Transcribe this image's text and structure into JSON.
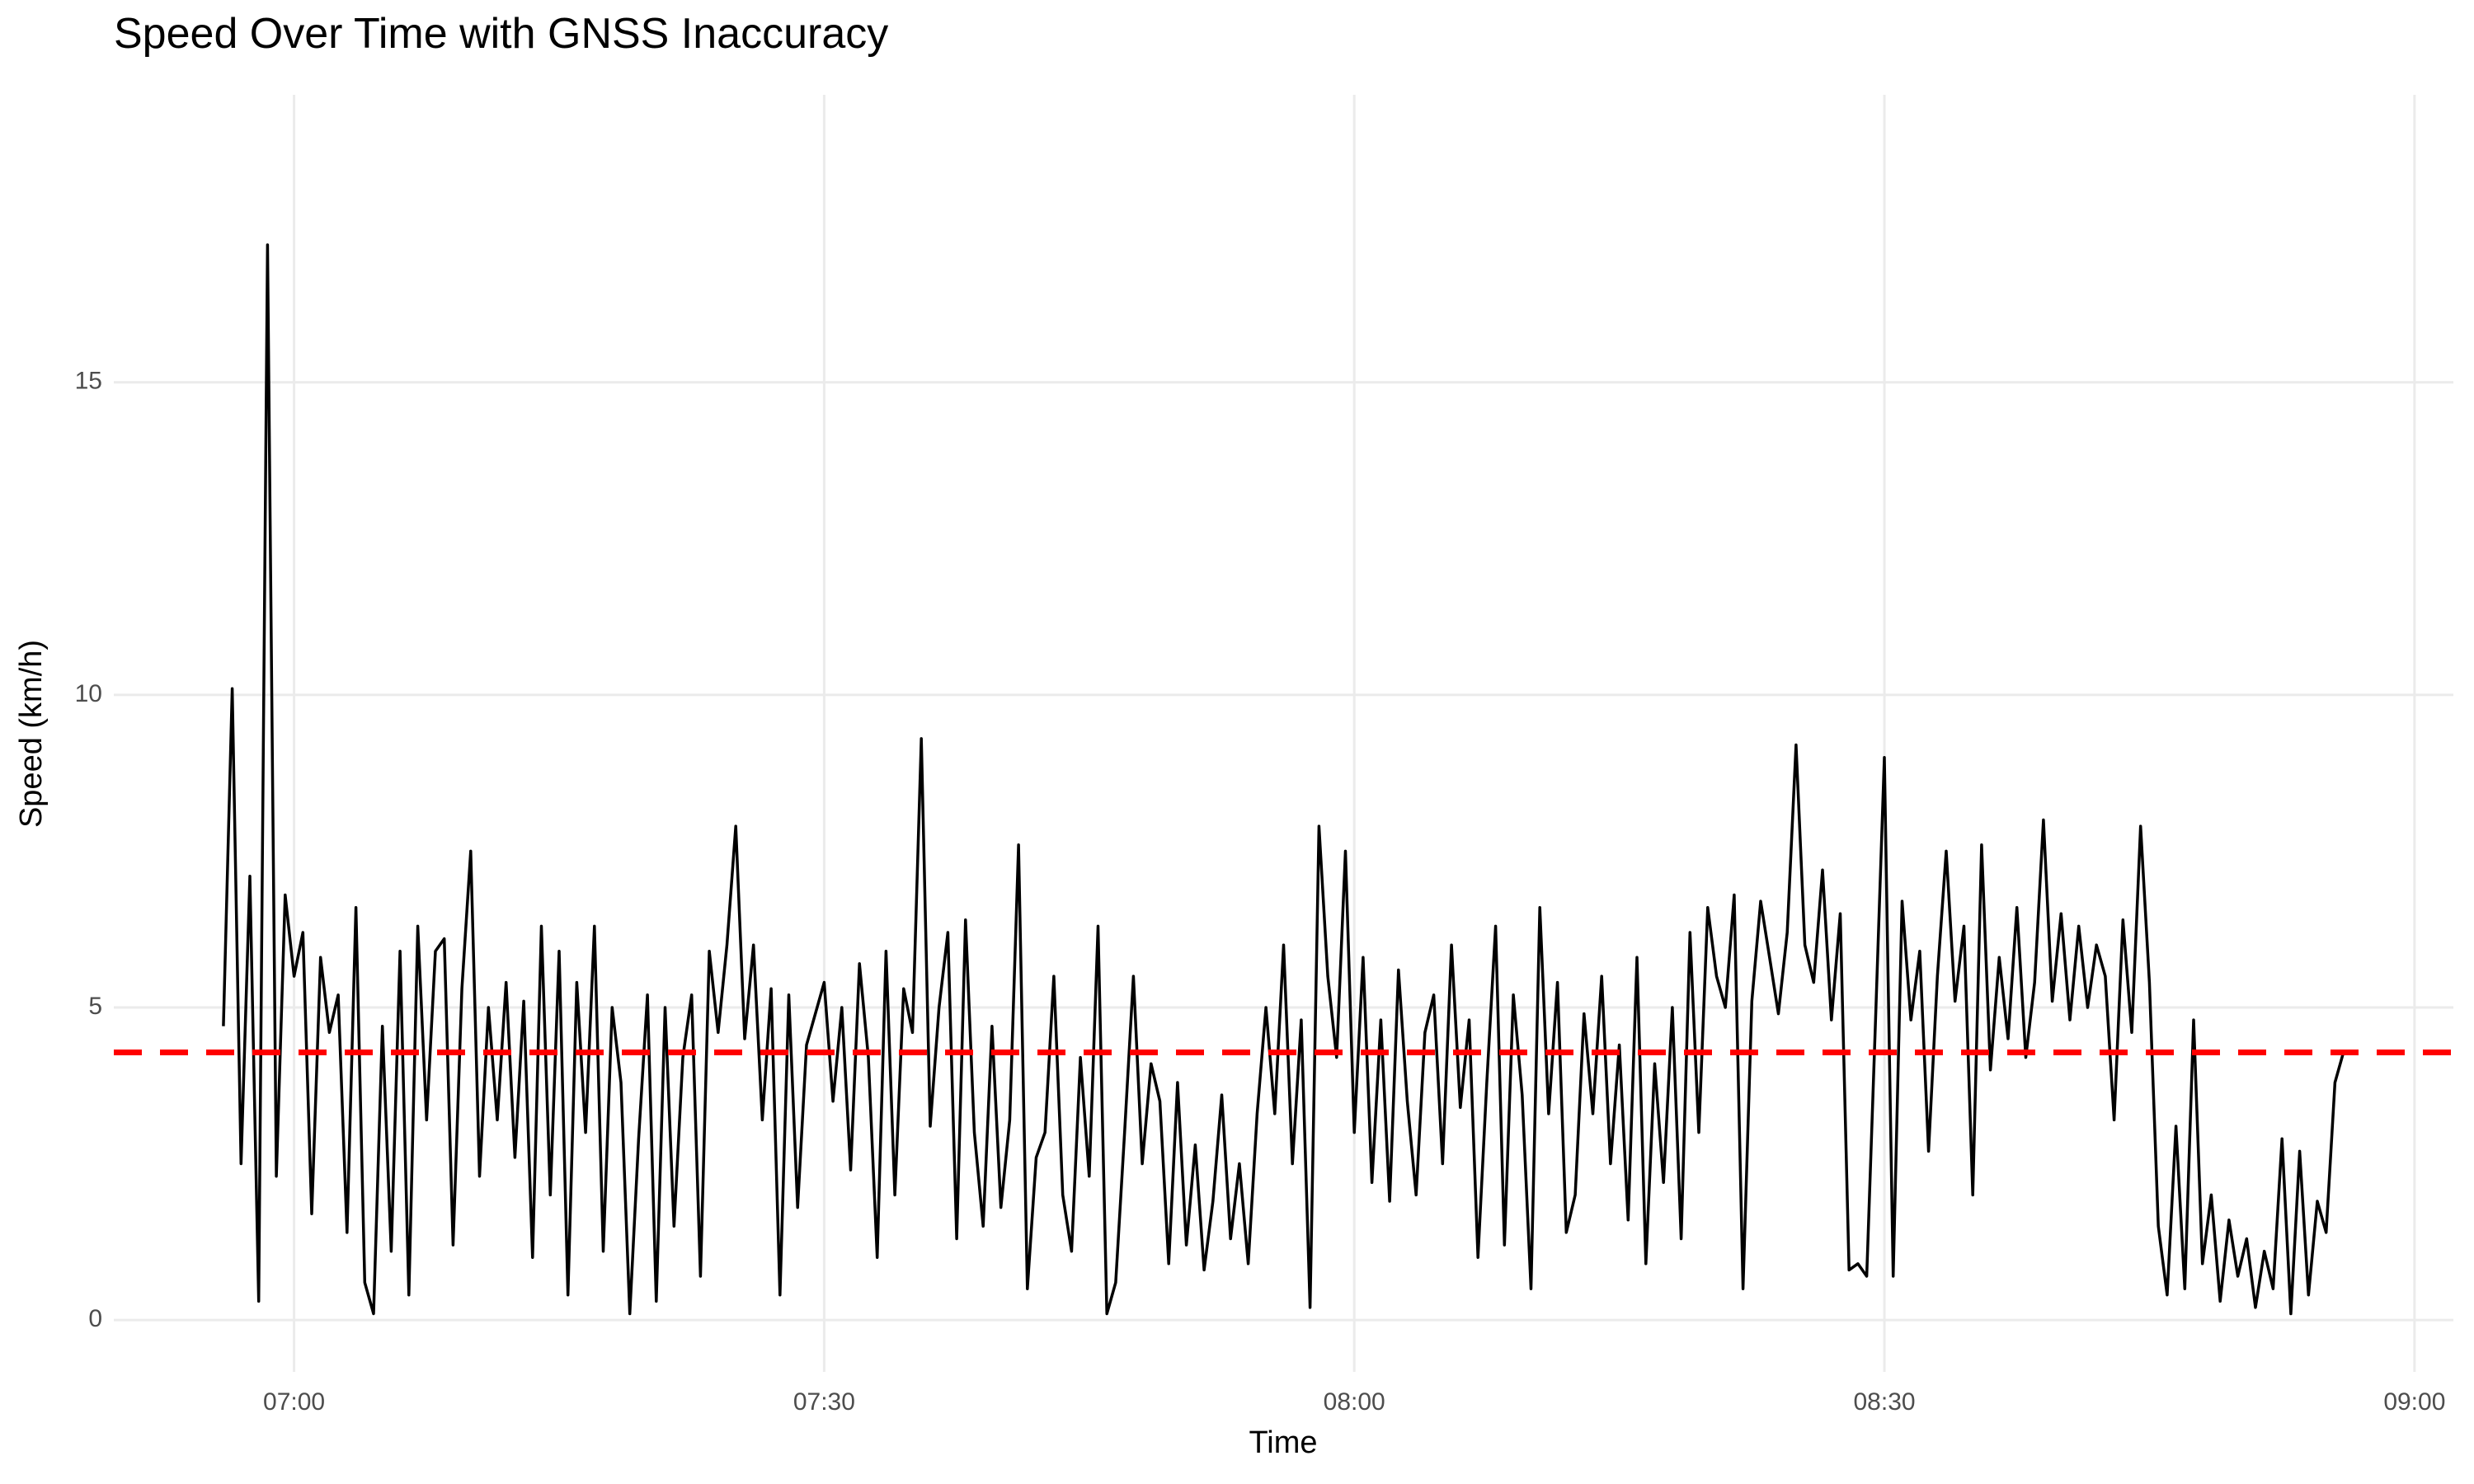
{
  "chart_data": {
    "type": "line",
    "title": "Speed Over Time with GNSS Inaccuracy",
    "x_label": "Time",
    "y_label": "Speed (km/h)",
    "xlim": [
      409.8,
      542.2
    ],
    "ylim": [
      -0.83,
      19.6
    ],
    "xticks": [
      {
        "value": 420,
        "label": "07:00"
      },
      {
        "value": 450,
        "label": "07:30"
      },
      {
        "value": 480,
        "label": "08:00"
      },
      {
        "value": 510,
        "label": "08:30"
      },
      {
        "value": 540,
        "label": "09:00"
      }
    ],
    "yticks": [
      0,
      5,
      10,
      15
    ],
    "grid": true,
    "x": [
      416,
      416.5,
      417,
      417.5,
      418,
      418.5,
      419,
      419.5,
      420,
      420.5,
      421,
      421.5,
      422,
      422.5,
      423,
      423.5,
      424,
      424.5,
      425,
      425.5,
      426,
      426.5,
      427,
      427.5,
      428,
      428.5,
      429,
      429.5,
      430,
      430.5,
      431,
      431.5,
      432,
      432.5,
      433,
      433.5,
      434,
      434.5,
      435,
      435.5,
      436,
      436.5,
      437,
      437.5,
      438,
      438.5,
      439,
      439.5,
      440,
      440.5,
      441,
      441.5,
      442,
      442.5,
      443,
      443.5,
      444,
      444.5,
      445,
      445.5,
      446,
      446.5,
      447,
      447.5,
      448,
      448.5,
      449,
      449.5,
      450,
      450.5,
      451,
      451.5,
      452,
      452.5,
      453,
      453.5,
      454,
      454.5,
      455,
      455.5,
      456,
      456.5,
      457,
      457.5,
      458,
      458.5,
      459,
      459.5,
      460,
      460.5,
      461,
      461.5,
      462,
      462.5,
      463,
      463.5,
      464,
      464.5,
      465,
      465.5,
      466,
      466.5,
      467,
      467.5,
      468,
      468.5,
      469,
      469.5,
      470,
      470.5,
      471,
      471.5,
      472,
      472.5,
      473,
      473.5,
      474,
      474.5,
      475,
      475.5,
      476,
      476.5,
      477,
      477.5,
      478,
      478.5,
      479,
      479.5,
      480,
      480.5,
      481,
      481.5,
      482,
      482.5,
      483,
      483.5,
      484,
      484.5,
      485,
      485.5,
      486,
      486.5,
      487,
      487.5,
      488,
      488.5,
      489,
      489.5,
      490,
      490.5,
      491,
      491.5,
      492,
      492.5,
      493,
      493.5,
      494,
      494.5,
      495,
      495.5,
      496,
      496.5,
      497,
      497.5,
      498,
      498.5,
      499,
      499.5,
      500,
      500.5,
      501,
      501.5,
      502,
      502.5,
      503,
      503.5,
      504,
      504.5,
      505,
      505.5,
      506,
      506.5,
      507,
      507.5,
      508,
      508.5,
      509,
      509.5,
      510,
      510.5,
      511,
      511.5,
      512,
      512.5,
      513,
      513.5,
      514,
      514.5,
      515,
      515.5,
      516,
      516.5,
      517,
      517.5,
      518,
      518.5,
      519,
      519.5,
      520,
      520.5,
      521,
      521.5,
      522,
      522.5,
      523,
      523.5,
      524,
      524.5,
      525,
      525.5,
      526,
      526.5,
      527,
      527.5,
      528,
      528.5,
      529,
      529.5,
      530,
      530.5,
      531,
      531.5,
      532,
      532.5,
      533,
      533.5,
      534,
      534.5,
      535,
      535.5,
      536
    ],
    "series": [
      {
        "color": "#000000",
        "values": [
          4.7,
          10.1,
          2.5,
          7.1,
          0.3,
          17.2,
          2.3,
          6.8,
          5.5,
          6.2,
          1.7,
          5.8,
          4.6,
          5.2,
          1.4,
          6.6,
          0.6,
          0.1,
          4.7,
          1.1,
          5.9,
          0.4,
          6.3,
          3.2,
          5.9,
          6.1,
          1.2,
          5.3,
          7.5,
          2.3,
          5.0,
          3.2,
          5.4,
          2.6,
          5.1,
          1.0,
          6.3,
          2.0,
          5.9,
          0.4,
          5.4,
          3.0,
          6.3,
          1.1,
          5.0,
          3.8,
          0.1,
          2.9,
          5.2,
          0.3,
          5.0,
          1.5,
          4.2,
          5.2,
          0.7,
          5.9,
          4.6,
          6.0,
          7.9,
          4.5,
          6.0,
          3.2,
          5.3,
          0.4,
          5.2,
          1.8,
          4.4,
          4.9,
          5.4,
          3.5,
          5.0,
          2.4,
          5.7,
          4.2,
          1.0,
          5.9,
          2.0,
          5.3,
          4.6,
          9.3,
          3.1,
          5.0,
          6.2,
          1.3,
          6.4,
          3.0,
          1.5,
          4.7,
          1.8,
          3.2,
          7.6,
          0.5,
          2.6,
          3.0,
          5.5,
          2.0,
          1.1,
          4.2,
          2.3,
          6.3,
          0.1,
          0.6,
          3.0,
          5.5,
          2.5,
          4.1,
          3.5,
          0.9,
          3.8,
          1.2,
          2.8,
          0.8,
          1.9,
          3.6,
          1.3,
          2.5,
          0.9,
          3.3,
          5.0,
          3.3,
          6.0,
          2.5,
          4.8,
          0.2,
          7.9,
          5.5,
          4.2,
          7.5,
          3.0,
          5.8,
          2.2,
          4.8,
          1.9,
          5.6,
          3.5,
          2.0,
          4.6,
          5.2,
          2.5,
          6.0,
          3.4,
          4.8,
          1.0,
          3.8,
          6.3,
          1.2,
          5.2,
          3.6,
          0.5,
          6.6,
          3.3,
          5.4,
          1.4,
          2.0,
          4.9,
          3.3,
          5.5,
          2.5,
          4.4,
          1.6,
          5.8,
          0.9,
          4.1,
          2.2,
          5.0,
          1.3,
          6.2,
          3.0,
          6.6,
          5.5,
          5.0,
          6.8,
          0.5,
          5.1,
          6.7,
          5.8,
          4.9,
          6.2,
          9.2,
          6.0,
          5.4,
          7.2,
          4.8,
          6.5,
          0.8,
          0.9,
          0.7,
          4.8,
          9.0,
          0.7,
          6.7,
          4.8,
          5.9,
          2.7,
          5.5,
          7.5,
          5.1,
          6.3,
          2.0,
          7.6,
          4.0,
          5.8,
          4.5,
          6.6,
          4.2,
          5.4,
          8.0,
          5.1,
          6.5,
          4.8,
          6.3,
          5.0,
          6.0,
          5.5,
          3.2,
          6.4,
          4.6,
          7.9,
          5.4,
          1.5,
          0.4,
          3.1,
          0.5,
          4.8,
          0.9,
          2.0,
          0.3,
          1.6,
          0.7,
          1.3,
          0.2,
          1.1,
          0.5,
          2.9,
          0.1,
          2.7,
          0.4,
          1.9,
          1.4,
          3.8,
          4.3
        ]
      }
    ],
    "reference_line": {
      "value": 4.28,
      "color": "#ff0000"
    }
  }
}
